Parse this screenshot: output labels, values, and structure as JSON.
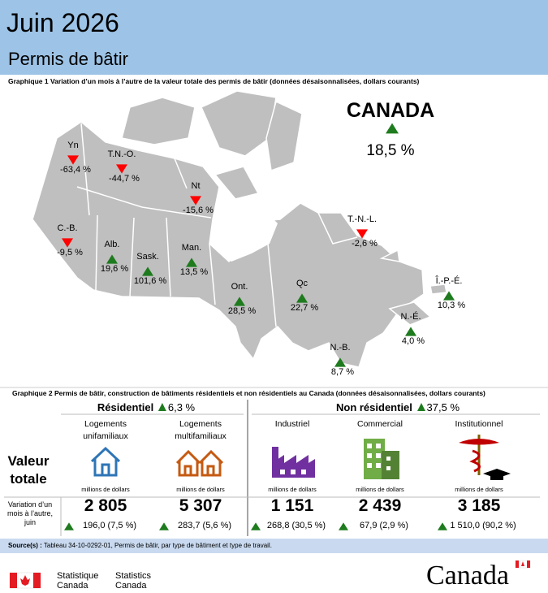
{
  "header": {
    "title": "Juin 2026",
    "subtitle": "Permis de bâtir"
  },
  "chart1": {
    "caption": "Graphique 1  Variation d’un mois à l’autre de la valeur totale des permis de bâtir (données désaisonnalisées, dollars courants)",
    "canada": {
      "label": "CANADA",
      "value": "18,5 %"
    },
    "regions": [
      {
        "label": "Yn",
        "value": "-63,4 %"
      },
      {
        "label": "T.N.-O.",
        "value": "-44,7 %"
      },
      {
        "label": "Nt",
        "value": "-15,6 %"
      },
      {
        "label": "C.-B.",
        "value": "-9,5 %"
      },
      {
        "label": "Alb.",
        "value": "19,6 %"
      },
      {
        "label": "Sask.",
        "value": "101,6 %"
      },
      {
        "label": "Man.",
        "value": "13,5 %"
      },
      {
        "label": "Ont.",
        "value": "28,5 %"
      },
      {
        "label": "Qc",
        "value": "22,7 %"
      },
      {
        "label": "T.-N.-L.",
        "value": "-2,6 %"
      },
      {
        "label": "Î.-P.-É.",
        "value": "10,3 %"
      },
      {
        "label": "N.-É.",
        "value": "4,0 %"
      },
      {
        "label": "N.-B.",
        "value": "8,7 %"
      }
    ]
  },
  "chart2": {
    "caption": "Graphique 2  Permis de bâtir, construction de bâtiments résidentiels et non résidentiels au Canada (données désaisonnalisées, dollars courants)",
    "row_labels": [
      "Valeur totale",
      "Variation d’un mois à l’autre, juin"
    ],
    "groups": [
      {
        "title": "Résidentiel",
        "change": "6,3 %",
        "items": [
          {
            "name": "Logements unifamiliaux",
            "unit": "millions de dollars",
            "value": "2 805",
            "change": "196,0 (7,5 %)"
          },
          {
            "name": "Logements multifamiliaux",
            "unit": "millions de dollars",
            "value": "5 307",
            "change": "283,7 (5,6 %)"
          }
        ]
      },
      {
        "title": "Non résidentiel",
        "change": "37,5 %",
        "items": [
          {
            "name": "Industriel",
            "unit": "millions de dollars",
            "value": "1 151",
            "change": "268,8 (30,5 %)"
          },
          {
            "name": "Commercial",
            "unit": "millions de dollars",
            "value": "2 439",
            "change": "67,9 (2,9 %)"
          },
          {
            "name": "Institutionnel",
            "unit": "millions de dollars",
            "value": "3 185",
            "change": "1 510,0 (90,2 %)"
          }
        ]
      }
    ]
  },
  "source": {
    "label": "Source(s) :",
    "text": "Tableau 34-10-0292-01, Permis de bâtir, par type de bâtiment et type de travail."
  },
  "footer": {
    "fr": "Statistique Canada",
    "en": "Statistics Canada",
    "wordmark": "Canada"
  }
}
